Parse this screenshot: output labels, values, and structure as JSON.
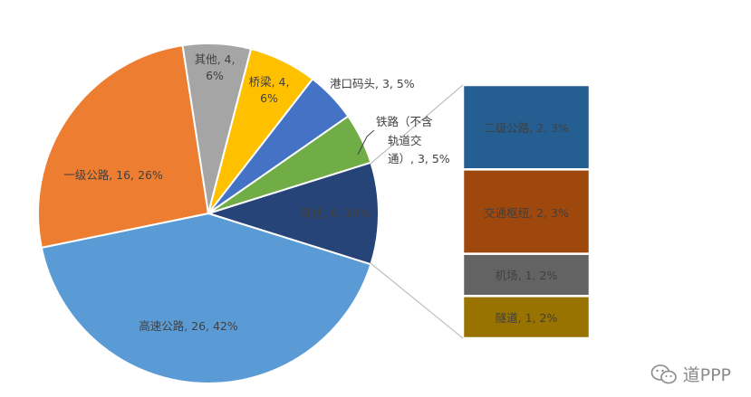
{
  "chart_data": {
    "type": "bar-of-pie",
    "pie": [
      {
        "label": "高速公路, 26, 42%",
        "name": "高速公路",
        "value": 26,
        "percent": 42,
        "color": "#5B9BD5"
      },
      {
        "label": "一级公路, 16, 26%",
        "name": "一级公路",
        "value": 16,
        "percent": 26,
        "color": "#ED7D31"
      },
      {
        "label": "其他, 4, 6%",
        "name": "其他",
        "value": 4,
        "percent": 6,
        "color": "#A5A5A5"
      },
      {
        "label": "桥梁, 4, 6%",
        "name": "桥梁",
        "value": 4,
        "percent": 6,
        "color": "#FFC000"
      },
      {
        "label": "港口码头, 3, 5%",
        "name": "港口码头",
        "value": 3,
        "percent": 5,
        "color": "#4472C4"
      },
      {
        "label": "铁路（不含轨道交通）, 3, 5%",
        "name": "铁路（不含轨道交通）",
        "value": 3,
        "percent": 5,
        "color": "#70AD47"
      },
      {
        "label": "其他, 6, 10%",
        "name": "其他",
        "value": 6,
        "percent": 10,
        "color": "#264478"
      }
    ],
    "bar": [
      {
        "label": "二级公路, 2, 3%",
        "name": "二级公路",
        "value": 2,
        "percent": 3,
        "color": "#255E91"
      },
      {
        "label": "交通枢纽, 2, 3%",
        "name": "交通枢纽",
        "value": 2,
        "percent": 3,
        "color": "#9E480E"
      },
      {
        "label": "机场, 1, 2%",
        "name": "机场",
        "value": 1,
        "percent": 2,
        "color": "#636363"
      },
      {
        "label": "隧道, 1, 2%",
        "name": "隧道",
        "value": 1,
        "percent": 2,
        "color": "#997300"
      }
    ]
  },
  "labels": {
    "pie_highway": "高速公路, 26, 42%",
    "pie_class1": "一级公路, 16, 26%",
    "pie_other_l1": "其他, 4,",
    "pie_other_l2": "6%",
    "pie_bridge_l1": "桥梁, 4,",
    "pie_bridge_l2": "6%",
    "pie_port": "港口码头, 3, 5%",
    "pie_rail_l1": "铁路（不含",
    "pie_rail_l2": "轨道交",
    "pie_rail_l3": "通）, 3, 5%",
    "pie_other2": "其他, 6, 10%",
    "bar_class2": "二级公路, 2, 3%",
    "bar_hub": "交通枢纽, 2, 3%",
    "bar_airport": "机场, 1, 2%",
    "bar_tunnel": "隧道, 1, 2%"
  },
  "watermark": {
    "text": "道PPP",
    "icon": "wechat-icon"
  }
}
